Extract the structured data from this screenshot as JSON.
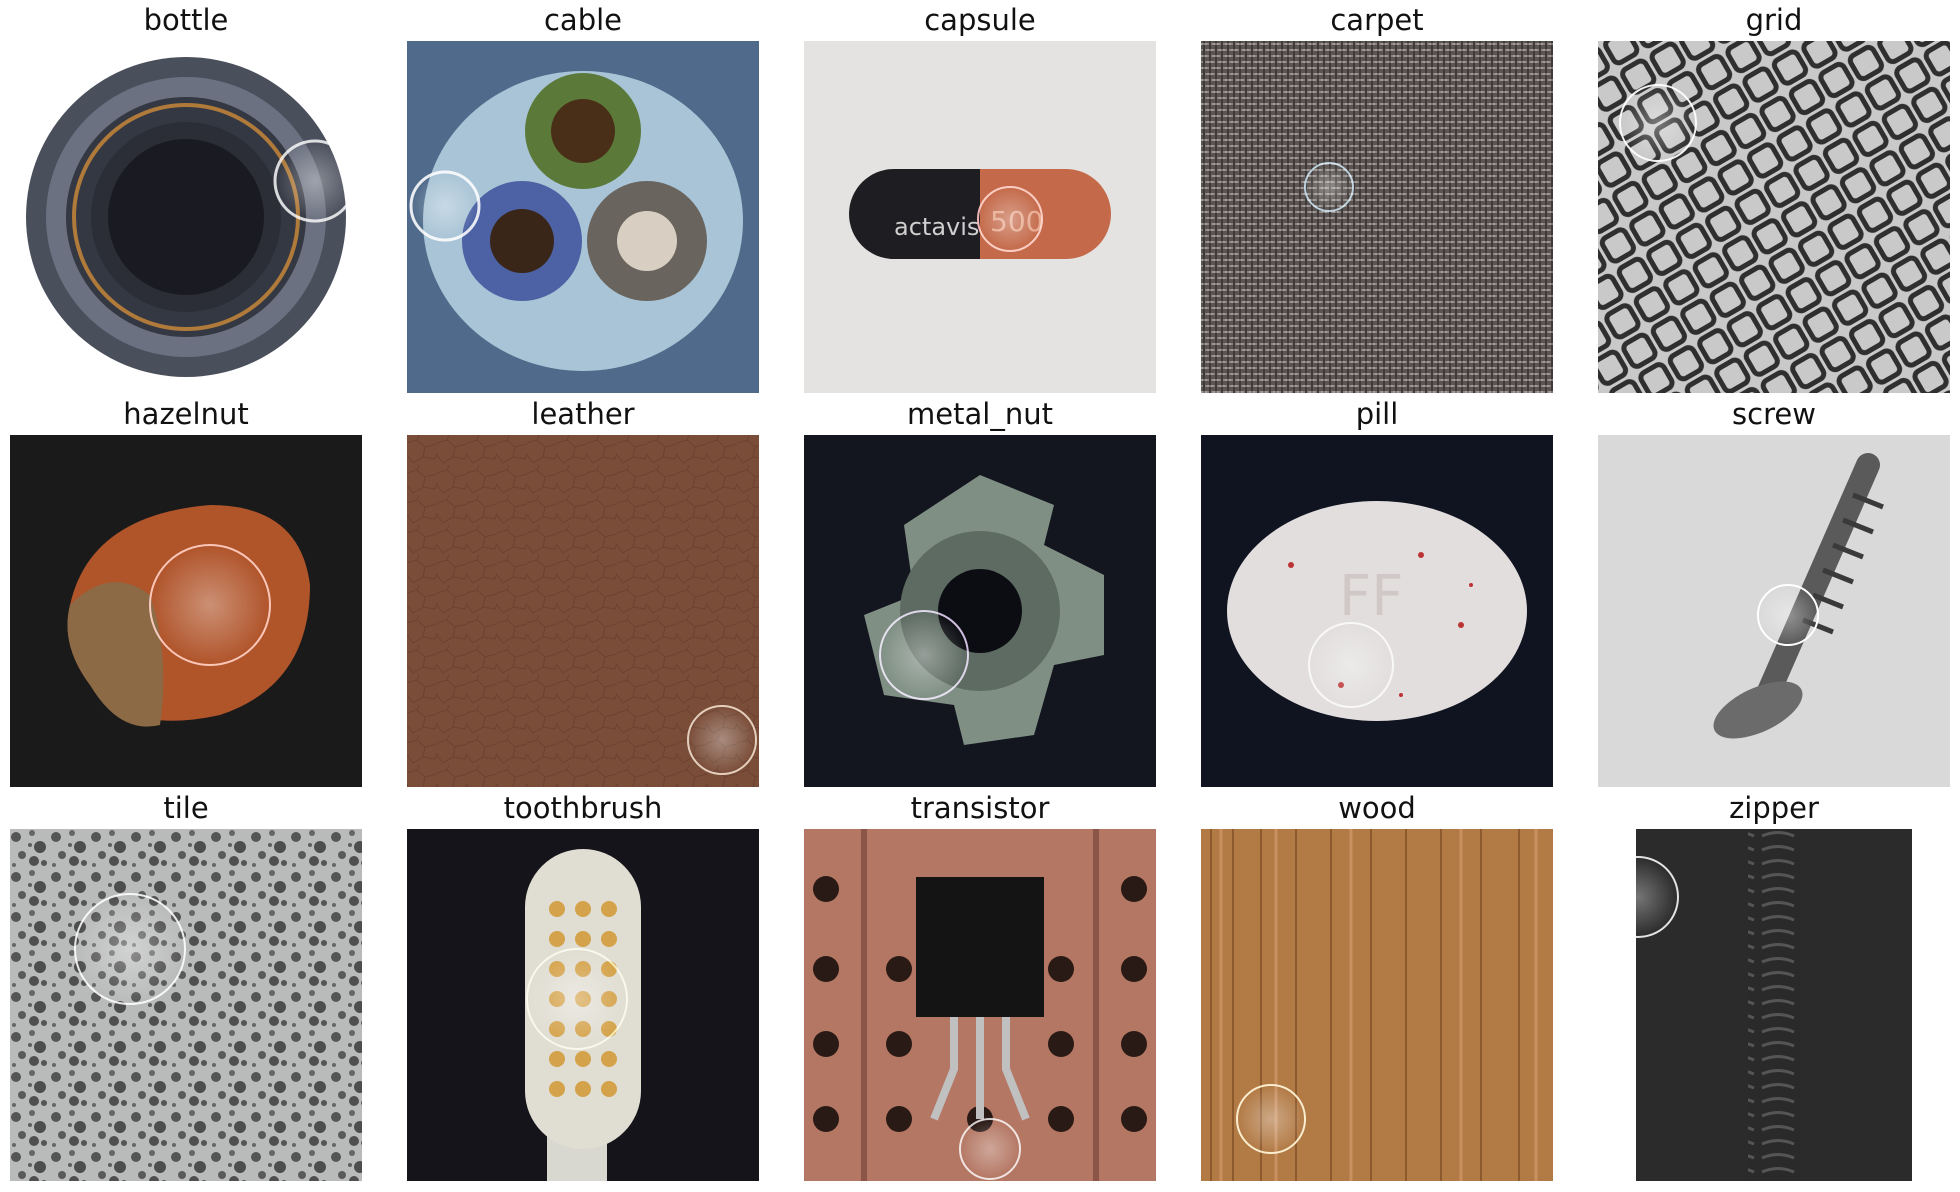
{
  "panels": [
    {
      "label": "bottle"
    },
    {
      "label": "cable"
    },
    {
      "label": "capsule"
    },
    {
      "label": "carpet"
    },
    {
      "label": "grid"
    },
    {
      "label": "hazelnut"
    },
    {
      "label": "leather"
    },
    {
      "label": "metal_nut"
    },
    {
      "label": "pill"
    },
    {
      "label": "screw"
    },
    {
      "label": "tile"
    },
    {
      "label": "toothbrush"
    },
    {
      "label": "transistor"
    },
    {
      "label": "wood"
    },
    {
      "label": "zipper"
    }
  ],
  "capsule_text": "actavis",
  "capsule_number": "500",
  "pill_text": "FF"
}
